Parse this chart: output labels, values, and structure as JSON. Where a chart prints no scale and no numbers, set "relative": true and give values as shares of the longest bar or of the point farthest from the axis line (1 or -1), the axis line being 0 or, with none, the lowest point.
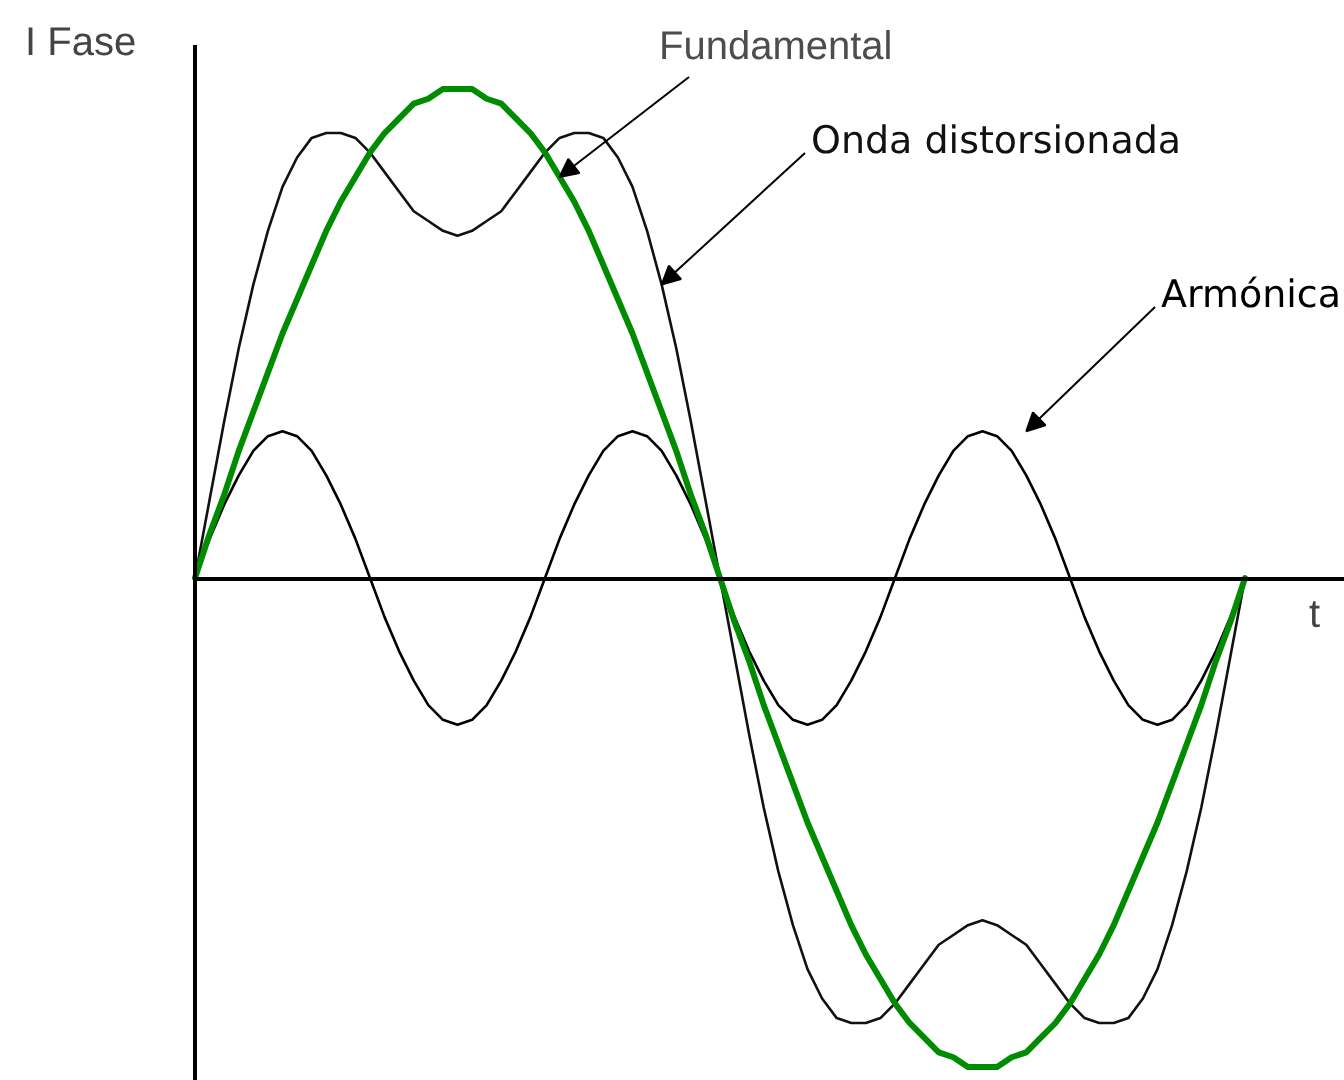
{
  "chart_data": {
    "type": "line",
    "xlabel": "t",
    "ylabel": "I Fase",
    "relative": true,
    "categories": [
      null,
      null,
      null,
      null,
      null,
      null,
      null,
      null,
      null,
      null,
      null,
      null,
      null,
      null,
      null,
      null,
      null,
      null,
      null,
      null,
      null,
      null,
      null,
      null,
      null,
      null,
      null,
      null,
      null,
      null,
      null,
      null,
      null,
      null,
      null,
      null,
      null,
      null,
      null,
      null,
      null,
      null,
      null,
      null,
      null,
      null,
      null,
      null,
      null,
      null,
      null,
      null,
      null,
      null,
      null,
      null,
      null,
      null,
      null,
      null,
      null,
      null,
      null,
      null,
      null,
      null,
      null,
      null,
      null,
      null,
      null,
      null,
      null
    ],
    "series": [
      {
        "name": "Fundamental",
        "color": "#008c00",
        "values": [
          0,
          0.09,
          0.17,
          0.26,
          0.34,
          0.42,
          0.5,
          0.57,
          0.64,
          0.71,
          0.77,
          0.82,
          0.87,
          0.91,
          0.94,
          0.97,
          0.98,
          1,
          1,
          1,
          0.98,
          0.97,
          0.94,
          0.91,
          0.87,
          0.82,
          0.77,
          0.71,
          0.64,
          0.57,
          0.5,
          0.42,
          0.34,
          0.26,
          0.17,
          0.09,
          0,
          -0.09,
          -0.17,
          -0.26,
          -0.34,
          -0.42,
          -0.5,
          -0.57,
          -0.64,
          -0.71,
          -0.77,
          -0.82,
          -0.87,
          -0.91,
          -0.94,
          -0.97,
          -0.98,
          -1,
          -1,
          -1,
          -0.98,
          -0.97,
          -0.94,
          -0.91,
          -0.87,
          -0.82,
          -0.77,
          -0.71,
          -0.64,
          -0.57,
          -0.5,
          -0.42,
          -0.34,
          -0.26,
          -0.17,
          -0.09,
          0
        ]
      },
      {
        "name": "Onda distorsionada",
        "color": "#111111",
        "values": [
          0,
          0.16,
          0.32,
          0.47,
          0.6,
          0.71,
          0.8,
          0.86,
          0.9,
          0.91,
          0.91,
          0.9,
          0.87,
          0.83,
          0.79,
          0.75,
          0.73,
          0.71,
          0.7,
          0.71,
          0.73,
          0.75,
          0.79,
          0.83,
          0.87,
          0.9,
          0.91,
          0.91,
          0.9,
          0.86,
          0.8,
          0.71,
          0.6,
          0.47,
          0.32,
          0.16,
          0,
          -0.16,
          -0.32,
          -0.47,
          -0.6,
          -0.71,
          -0.8,
          -0.86,
          -0.9,
          -0.91,
          -0.91,
          -0.9,
          -0.87,
          -0.83,
          -0.79,
          -0.75,
          -0.73,
          -0.71,
          -0.7,
          -0.71,
          -0.73,
          -0.75,
          -0.79,
          -0.83,
          -0.87,
          -0.9,
          -0.91,
          -0.91,
          -0.9,
          -0.86,
          -0.8,
          -0.71,
          -0.6,
          -0.47,
          -0.32,
          -0.16,
          0
        ]
      },
      {
        "name": "Armónica",
        "color": "#000000",
        "values": [
          0,
          0.08,
          0.15,
          0.21,
          0.26,
          0.29,
          0.3,
          0.29,
          0.26,
          0.21,
          0.15,
          0.08,
          0,
          -0.08,
          -0.15,
          -0.21,
          -0.26,
          -0.29,
          -0.3,
          -0.29,
          -0.26,
          -0.21,
          -0.15,
          -0.08,
          0,
          0.08,
          0.15,
          0.21,
          0.26,
          0.29,
          0.3,
          0.29,
          0.26,
          0.21,
          0.15,
          0.08,
          0,
          -0.08,
          -0.15,
          -0.21,
          -0.26,
          -0.29,
          -0.3,
          -0.29,
          -0.26,
          -0.21,
          -0.15,
          -0.08,
          0,
          0.08,
          0.15,
          0.21,
          0.26,
          0.29,
          0.3,
          0.29,
          0.26,
          0.21,
          0.15,
          0.08,
          0,
          -0.08,
          -0.15,
          -0.21,
          -0.26,
          -0.29,
          -0.3,
          -0.29,
          -0.26,
          -0.21,
          -0.15,
          -0.08,
          0
        ]
      }
    ]
  }
}
